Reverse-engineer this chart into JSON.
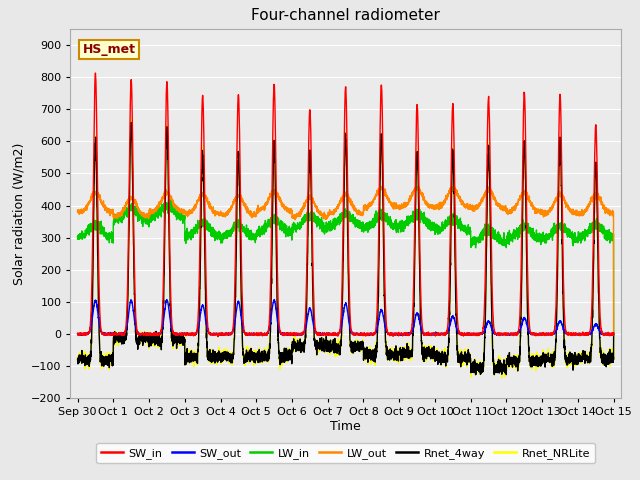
{
  "title": "Four-channel radiometer",
  "ylabel": "Solar radiation (W/m2)",
  "xlabel": "Time",
  "annotation": "HS_met",
  "ylim": [
    -200,
    950
  ],
  "yticks": [
    -200,
    -100,
    0,
    100,
    200,
    300,
    400,
    500,
    600,
    700,
    800,
    900
  ],
  "xtick_labels": [
    "Sep 30",
    "Oct 1",
    "Oct 2",
    "Oct 3",
    "Oct 4",
    "Oct 5",
    "Oct 6",
    "Oct 7",
    "Oct 8",
    "Oct 9",
    "Oct 10",
    "Oct 11",
    "Oct 12",
    "Oct 13",
    "Oct 14",
    "Oct 15"
  ],
  "xtick_positions": [
    0,
    1,
    2,
    3,
    4,
    5,
    6,
    7,
    8,
    9,
    10,
    11,
    12,
    13,
    14,
    15
  ],
  "fig_bg": "#e8e8e8",
  "ax_bg": "#ebebeb",
  "series": {
    "SW_in": {
      "color": "#ff0000",
      "lw": 1.0
    },
    "SW_out": {
      "color": "#0000ff",
      "lw": 1.0
    },
    "LW_in": {
      "color": "#00cc00",
      "lw": 1.0
    },
    "LW_out": {
      "color": "#ff8800",
      "lw": 1.0
    },
    "Rnet_4way": {
      "color": "#000000",
      "lw": 1.0
    },
    "Rnet_NRLite": {
      "color": "#ffff00",
      "lw": 1.0
    }
  },
  "legend_order": [
    "SW_in",
    "SW_out",
    "LW_in",
    "LW_out",
    "Rnet_4way",
    "Rnet_NRLite"
  ],
  "sw_in_peaks": [
    810,
    790,
    785,
    742,
    745,
    778,
    700,
    770,
    775,
    715,
    715,
    738,
    750,
    745,
    650
  ],
  "sw_out_peaks": [
    105,
    105,
    105,
    90,
    100,
    105,
    80,
    95,
    75,
    65,
    55,
    40,
    50,
    40,
    30
  ],
  "lw_out_base": [
    380,
    365,
    380,
    375,
    370,
    385,
    365,
    375,
    395,
    395,
    395,
    390,
    380,
    375,
    375
  ],
  "lw_in_base": [
    300,
    350,
    360,
    305,
    300,
    315,
    330,
    335,
    330,
    335,
    320,
    285,
    295,
    295,
    300
  ]
}
